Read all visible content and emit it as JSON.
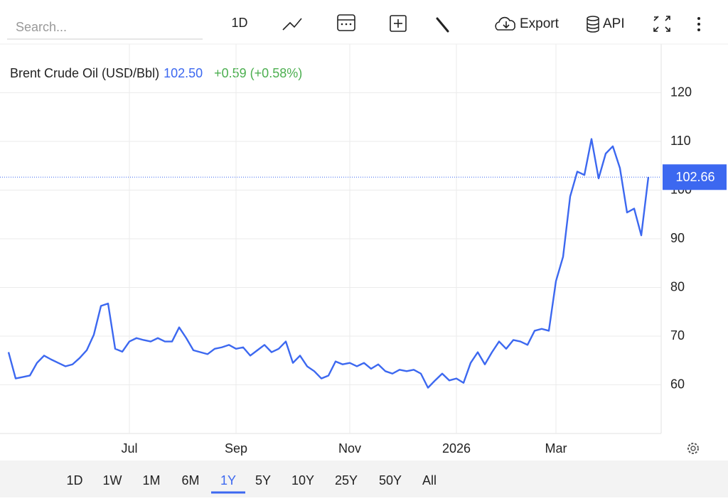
{
  "toolbar": {
    "search_placeholder": "Search...",
    "interval": "1D",
    "export": "Export",
    "api": "API"
  },
  "chart_data": {
    "type": "line",
    "title": "Brent Crude Oil (USD/Bbl)",
    "price": "102.50",
    "change": "+0.59 (+0.58%)",
    "categories": [
      null,
      null,
      null,
      null,
      null,
      null,
      null,
      null,
      null,
      null,
      null,
      null,
      null,
      null,
      null,
      null,
      null,
      "Jul",
      null,
      null,
      null,
      null,
      null,
      null,
      null,
      null,
      null,
      null,
      null,
      null,
      null,
      null,
      "Sep",
      null,
      null,
      null,
      null,
      null,
      null,
      null,
      null,
      null,
      null,
      null,
      null,
      null,
      null,
      null,
      "Nov",
      null,
      null,
      null,
      null,
      null,
      null,
      null,
      null,
      null,
      null,
      null,
      null,
      null,
      null,
      "2026",
      null,
      null,
      null,
      null,
      null,
      null,
      null,
      null,
      null,
      null,
      null,
      null,
      null,
      "Mar",
      null,
      null,
      null,
      null,
      null,
      null,
      null,
      null,
      null,
      null,
      null,
      null,
      null
    ],
    "series": [
      {
        "name": "Brent Crude Oil",
        "color": "#3c68f0",
        "values": [
          66.7,
          61.3,
          61.6,
          61.9,
          64.5,
          66,
          65.2,
          64.5,
          63.8,
          64.2,
          65.5,
          67.1,
          70.3,
          76.2,
          76.7,
          67.4,
          66.8,
          68.9,
          69.6,
          69.2,
          68.9,
          69.6,
          68.9,
          68.9,
          71.8,
          69.6,
          67.1,
          66.7,
          66.3,
          67.4,
          67.7,
          68.2,
          67.4,
          67.7,
          66,
          67.1,
          68.2,
          66.7,
          67.4,
          68.9,
          64.5,
          66,
          63.8,
          62.8,
          61.3,
          61.9,
          64.8,
          64.2,
          64.5,
          63.8,
          64.5,
          63.3,
          64.2,
          62.8,
          62.3,
          63.1,
          62.8,
          63.1,
          62.3,
          59.4,
          60.9,
          62.3,
          60.9,
          61.3,
          60.4,
          64.5,
          66.7,
          64.2,
          66.7,
          68.9,
          67.4,
          69.2,
          68.9,
          68.2,
          71.1,
          71.5,
          71.1,
          81.3,
          86.3,
          98.7,
          103.8,
          103.1,
          110.5,
          102.4,
          107.5,
          109,
          104.5,
          95.4,
          96.2,
          90.7,
          102.7
        ]
      }
    ],
    "reference_line": {
      "value": 102.66,
      "label": "102.66",
      "color": "#3c68f0"
    },
    "ylim": [
      50,
      130
    ],
    "yticks": [
      60,
      70,
      80,
      90,
      100,
      110,
      120
    ],
    "grid": true,
    "ranges": [
      "1D",
      "1W",
      "1M",
      "6M",
      "1Y",
      "5Y",
      "10Y",
      "25Y",
      "50Y",
      "All"
    ],
    "selected_range": "1Y"
  }
}
